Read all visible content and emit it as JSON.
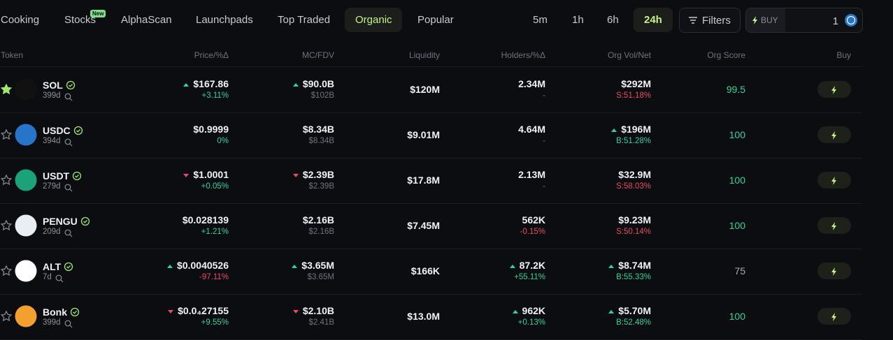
{
  "tabs": [
    "Cooking",
    "Stocks",
    "AlphaScan",
    "Launchpads",
    "Top Traded",
    "Organic",
    "Popular"
  ],
  "badge": "New",
  "timeframes": [
    "5m",
    "1h",
    "6h",
    "24h"
  ],
  "filters": "Filters",
  "buy_label": "BUY",
  "buy_amount": "1",
  "table": {
    "headers": [
      "Token",
      "Price/%Δ",
      "MC/FDV",
      "Liquidity",
      "Holders/%Δ",
      "Org Vol/Net",
      "Org Score",
      "Buy"
    ],
    "rows": [
      {
        "token": "SOL",
        "age": "399d",
        "starred": true,
        "price": "$167.86",
        "price_dir": "up",
        "price_change": "+3.11%",
        "mc": "$90.0B",
        "mc_dir": "up",
        "fdv": "$102B",
        "liquidity": "$120M",
        "holders": "2.34M",
        "holders_dir": null,
        "holders_change": "-",
        "vol": "$292M",
        "vol_dir": null,
        "net": "S:51.18%",
        "score": "99.5"
      },
      {
        "token": "USDC",
        "age": "394d",
        "starred": false,
        "price": "$0.9999",
        "price_dir": null,
        "price_change": "0%",
        "mc": "$8.34B",
        "mc_dir": null,
        "fdv": "$8.34B",
        "liquidity": "$9.01M",
        "holders": "4.64M",
        "holders_dir": null,
        "holders_change": "-",
        "vol": "$196M",
        "vol_dir": "up",
        "net": "B:51.28%",
        "score": "100"
      },
      {
        "token": "USDT",
        "age": "279d",
        "starred": false,
        "price": "$1.0001",
        "price_dir": "down",
        "price_change": "+0.05%",
        "mc": "$2.39B",
        "mc_dir": "down",
        "fdv": "$2.39B",
        "liquidity": "$17.8M",
        "holders": "2.13M",
        "holders_dir": null,
        "holders_change": "-",
        "vol": "$32.9M",
        "vol_dir": null,
        "net": "S:58.03%",
        "score": "100"
      },
      {
        "token": "PENGU",
        "age": "209d",
        "starred": false,
        "price": "$0.028139",
        "price_dir": null,
        "price_change": "+1.21%",
        "mc": "$2.16B",
        "mc_dir": null,
        "fdv": "$2.16B",
        "liquidity": "$7.45M",
        "holders": "562K",
        "holders_dir": null,
        "holders_change": "-0.15%",
        "vol": "$9.23M",
        "vol_dir": null,
        "net": "S:50.14%",
        "score": "100"
      },
      {
        "token": "ALT",
        "age": "7d",
        "starred": false,
        "price": "$0.0040526",
        "price_dir": "up",
        "price_change": "-97.11%",
        "mc": "$3.65M",
        "mc_dir": "up",
        "fdv": "$3.65M",
        "liquidity": "$166K",
        "holders": "87.2K",
        "holders_dir": "up",
        "holders_change": "+55.11%",
        "vol": "$8.74M",
        "vol_dir": "up",
        "net": "B:55.33%",
        "score": "75"
      },
      {
        "token": "Bonk",
        "age": "399d",
        "starred": false,
        "price": "$0.0₄27155",
        "price_dir": "down",
        "price_change": "+9.55%",
        "mc": "$2.10B",
        "mc_dir": "down",
        "fdv": "$2.41B",
        "liquidity": "$13.0M",
        "holders": "962K",
        "holders_dir": "up",
        "holders_change": "+0.13%",
        "vol": "$5.70M",
        "vol_dir": "up",
        "net": "B:52.48%",
        "score": "100"
      }
    ]
  }
}
